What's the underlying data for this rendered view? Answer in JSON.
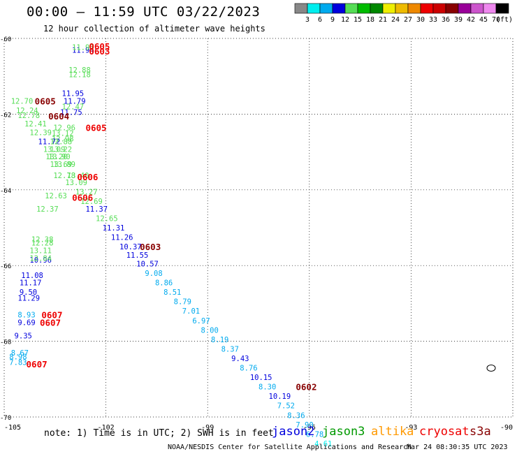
{
  "title": "00:00 – 11:59 UTC 03/22/2023",
  "subtitle": "12 hour collection of altimeter wave heights",
  "note": "note: 1) Time is in UTC; 2) SWH is in feet",
  "credit": "NOAA/NESDIS Center for Satellite Applications and Research",
  "timestamp": "Mar 24 08:30:35 UTC 2023",
  "satellites": [
    {
      "name": "jason2",
      "color": "#0000dd"
    },
    {
      "name": "jason3",
      "color": "#009900"
    },
    {
      "name": "altika",
      "color": "#ff9900"
    },
    {
      "name": "cryosat",
      "color": "#ee0000"
    },
    {
      "name": "s3a",
      "color": "#880000"
    }
  ],
  "colorbar": {
    "unit": "(ft)",
    "labels": [
      "3",
      "6",
      "9",
      "12",
      "15",
      "18",
      "21",
      "24",
      "27",
      "30",
      "33",
      "36",
      "39",
      "42",
      "45",
      "70"
    ],
    "colors": [
      "#888888",
      "#00eeee",
      "#00aaee",
      "#0000dd",
      "#55dd55",
      "#00bb00",
      "#008800",
      "#eeee00",
      "#eebb00",
      "#ee8800",
      "#ee0000",
      "#cc0000",
      "#880000",
      "#990099",
      "#cc55cc",
      "#ee88ee",
      "#000000"
    ]
  },
  "map": {
    "lon_range": [
      -105,
      -90
    ],
    "lat_range": [
      -70,
      -60
    ],
    "lon_ticks": [
      "-105",
      "-102",
      "-99",
      "-96",
      "-93",
      "-90"
    ],
    "lat_ticks": [
      "-60",
      "-62",
      "-64",
      "-66",
      "-68",
      "-70"
    ]
  },
  "chart_data": {
    "type": "scatter",
    "x_label": "",
    "y_label": "",
    "wave_heights": [
      {
        "text": "11.94",
        "lon": -103.0,
        "lat": -60.3,
        "c": "#0000dd"
      },
      {
        "text": "11.97",
        "lon": -103.0,
        "lat": -60.23,
        "c": "#55dd55"
      },
      {
        "text": "12.18",
        "lon": -103.1,
        "lat": -60.95,
        "c": "#55dd55"
      },
      {
        "text": "12.88",
        "lon": -103.1,
        "lat": -60.83,
        "c": "#55dd55"
      },
      {
        "text": "11.95",
        "lon": -103.3,
        "lat": -61.45,
        "c": "#0000dd"
      },
      {
        "text": "11.79",
        "lon": -103.25,
        "lat": -61.65,
        "c": "#0000dd"
      },
      {
        "text": "12.47",
        "lon": -103.3,
        "lat": -61.8,
        "c": "#55dd55"
      },
      {
        "text": "11.75",
        "lon": -103.35,
        "lat": -61.95,
        "c": "#0000dd"
      },
      {
        "text": "12.70",
        "lon": -104.8,
        "lat": -61.65,
        "c": "#55dd55"
      },
      {
        "text": "12.24",
        "lon": -104.65,
        "lat": -61.9,
        "c": "#55dd55"
      },
      {
        "text": "12.78",
        "lon": -104.6,
        "lat": -62.03,
        "c": "#55dd55"
      },
      {
        "text": "12.41",
        "lon": -104.4,
        "lat": -62.25,
        "c": "#55dd55"
      },
      {
        "text": "12.39",
        "lon": -104.25,
        "lat": -62.48,
        "c": "#55dd55"
      },
      {
        "text": "12.96",
        "lon": -103.55,
        "lat": -62.35,
        "c": "#55dd55"
      },
      {
        "text": "13.12",
        "lon": -103.6,
        "lat": -62.5,
        "c": "#55dd55"
      },
      {
        "text": "12.98",
        "lon": -103.6,
        "lat": -62.65,
        "c": "#55dd55"
      },
      {
        "text": "11.72",
        "lon": -104.0,
        "lat": -62.72,
        "c": "#0000dd"
      },
      {
        "text": "12.88",
        "lon": -103.65,
        "lat": -62.72,
        "c": "#55dd55"
      },
      {
        "text": "13.09",
        "lon": -103.85,
        "lat": -62.92,
        "c": "#55dd55"
      },
      {
        "text": "13.22",
        "lon": -103.65,
        "lat": -62.92,
        "c": "#55dd55"
      },
      {
        "text": "13.90",
        "lon": -103.7,
        "lat": -63.12,
        "c": "#55dd55"
      },
      {
        "text": "13.20",
        "lon": -103.78,
        "lat": -63.12,
        "c": "#55dd55"
      },
      {
        "text": "13.89",
        "lon": -103.55,
        "lat": -63.32,
        "c": "#55dd55"
      },
      {
        "text": "13.69",
        "lon": -103.65,
        "lat": -63.32,
        "c": "#55dd55"
      },
      {
        "text": "12.78",
        "lon": -103.55,
        "lat": -63.62,
        "c": "#55dd55"
      },
      {
        "text": "13.40",
        "lon": -103.15,
        "lat": -63.62,
        "c": "#55dd55"
      },
      {
        "text": "13.09",
        "lon": -103.2,
        "lat": -63.8,
        "c": "#55dd55"
      },
      {
        "text": "12.63",
        "lon": -103.8,
        "lat": -64.15,
        "c": "#55dd55"
      },
      {
        "text": "13.27",
        "lon": -102.9,
        "lat": -64.05,
        "c": "#55dd55"
      },
      {
        "text": "12.69",
        "lon": -102.75,
        "lat": -64.3,
        "c": "#55dd55"
      },
      {
        "text": "12.37",
        "lon": -104.05,
        "lat": -64.5,
        "c": "#55dd55"
      },
      {
        "text": "11.37",
        "lon": -102.6,
        "lat": -64.5,
        "c": "#0000dd"
      },
      {
        "text": "12.65",
        "lon": -102.3,
        "lat": -64.75,
        "c": "#55dd55"
      },
      {
        "text": "11.31",
        "lon": -102.1,
        "lat": -65.0,
        "c": "#0000dd"
      },
      {
        "text": "11.26",
        "lon": -101.85,
        "lat": -65.25,
        "c": "#0000dd"
      },
      {
        "text": "10.37",
        "lon": -101.6,
        "lat": -65.5,
        "c": "#0000dd"
      },
      {
        "text": "11.55",
        "lon": -101.4,
        "lat": -65.72,
        "c": "#0000dd"
      },
      {
        "text": "10.57",
        "lon": -101.1,
        "lat": -65.95,
        "c": "#0000dd"
      },
      {
        "text": "9.08",
        "lon": -100.85,
        "lat": -66.2,
        "c": "#00aaee"
      },
      {
        "text": "8.86",
        "lon": -100.55,
        "lat": -66.45,
        "c": "#00aaee"
      },
      {
        "text": "8.51",
        "lon": -100.3,
        "lat": -66.7,
        "c": "#00aaee"
      },
      {
        "text": "8.79",
        "lon": -100.0,
        "lat": -66.95,
        "c": "#00aaee"
      },
      {
        "text": "7.01",
        "lon": -99.75,
        "lat": -67.2,
        "c": "#00aaee"
      },
      {
        "text": "6.97",
        "lon": -99.45,
        "lat": -67.45,
        "c": "#00aaee"
      },
      {
        "text": "8.00",
        "lon": -99.2,
        "lat": -67.7,
        "c": "#00aaee"
      },
      {
        "text": "8.19",
        "lon": -98.9,
        "lat": -67.95,
        "c": "#00aaee"
      },
      {
        "text": "8.37",
        "lon": -98.6,
        "lat": -68.2,
        "c": "#00aaee"
      },
      {
        "text": "9.43",
        "lon": -98.3,
        "lat": -68.45,
        "c": "#0000dd"
      },
      {
        "text": "8.76",
        "lon": -98.05,
        "lat": -68.7,
        "c": "#00aaee"
      },
      {
        "text": "10.15",
        "lon": -97.75,
        "lat": -68.95,
        "c": "#0000dd"
      },
      {
        "text": "8.30",
        "lon": -97.5,
        "lat": -69.2,
        "c": "#00aaee"
      },
      {
        "text": "10.19",
        "lon": -97.2,
        "lat": -69.45,
        "c": "#0000dd"
      },
      {
        "text": "7.52",
        "lon": -96.95,
        "lat": -69.7,
        "c": "#00aaee"
      },
      {
        "text": "8.36",
        "lon": -96.65,
        "lat": -69.95,
        "c": "#00aaee"
      },
      {
        "text": "7.90",
        "lon": -96.4,
        "lat": -70.2,
        "c": "#00aaee"
      },
      {
        "text": "6.78",
        "lon": -96.1,
        "lat": -70.45,
        "c": "#00aaee"
      },
      {
        "text": "4.61",
        "lon": -95.85,
        "lat": -70.7,
        "c": "#00eeee"
      },
      {
        "text": "12.38",
        "lon": -104.2,
        "lat": -65.3,
        "c": "#55dd55"
      },
      {
        "text": "12.28",
        "lon": -104.2,
        "lat": -65.4,
        "c": "#55dd55"
      },
      {
        "text": "13.11",
        "lon": -104.25,
        "lat": -65.6,
        "c": "#55dd55"
      },
      {
        "text": "10.96",
        "lon": -104.25,
        "lat": -65.85,
        "c": "#0000dd"
      },
      {
        "text": "12.84",
        "lon": -104.25,
        "lat": -65.8,
        "c": "#55dd55"
      },
      {
        "text": "11.08",
        "lon": -104.5,
        "lat": -66.25,
        "c": "#0000dd"
      },
      {
        "text": "11.17",
        "lon": -104.55,
        "lat": -66.45,
        "c": "#0000dd"
      },
      {
        "text": "9.50",
        "lon": -104.55,
        "lat": -66.7,
        "c": "#0000dd"
      },
      {
        "text": "11.29",
        "lon": -104.6,
        "lat": -66.85,
        "c": "#0000dd"
      },
      {
        "text": "8.93",
        "lon": -104.6,
        "lat": -67.3,
        "c": "#00aaee"
      },
      {
        "text": "9.69",
        "lon": -104.6,
        "lat": -67.5,
        "c": "#0000dd"
      },
      {
        "text": "9.35",
        "lon": -104.7,
        "lat": -67.85,
        "c": "#0000dd"
      },
      {
        "text": "8.67",
        "lon": -104.8,
        "lat": -68.3,
        "c": "#00aaee"
      },
      {
        "text": "8.98",
        "lon": -104.85,
        "lat": -68.4,
        "c": "#00aaee"
      },
      {
        "text": "7.83",
        "lon": -104.85,
        "lat": -68.55,
        "c": "#00aaee"
      }
    ],
    "pass_labels": [
      {
        "text": "0605",
        "lon": -102.5,
        "lat": -60.2,
        "c": "#ee0000"
      },
      {
        "text": "0603",
        "lon": -102.5,
        "lat": -60.33,
        "c": "#ee0000"
      },
      {
        "text": "0605",
        "lon": -104.1,
        "lat": -61.65,
        "c": "#880000"
      },
      {
        "text": "0604",
        "lon": -103.7,
        "lat": -62.05,
        "c": "#880000"
      },
      {
        "text": "0605",
        "lon": -102.6,
        "lat": -62.35,
        "c": "#ee0000"
      },
      {
        "text": "0606",
        "lon": -102.85,
        "lat": -63.65,
        "c": "#ee0000"
      },
      {
        "text": "0606",
        "lon": -103.0,
        "lat": -64.2,
        "c": "#ee0000"
      },
      {
        "text": "0603",
        "lon": -101.0,
        "lat": -65.5,
        "c": "#880000"
      },
      {
        "text": "0607",
        "lon": -103.9,
        "lat": -67.3,
        "c": "#ee0000"
      },
      {
        "text": "0607",
        "lon": -103.95,
        "lat": -67.5,
        "c": "#ee0000"
      },
      {
        "text": "0607",
        "lon": -104.35,
        "lat": -68.6,
        "c": "#ee0000"
      },
      {
        "text": "0602",
        "lon": -96.4,
        "lat": -69.2,
        "c": "#880000"
      }
    ]
  }
}
